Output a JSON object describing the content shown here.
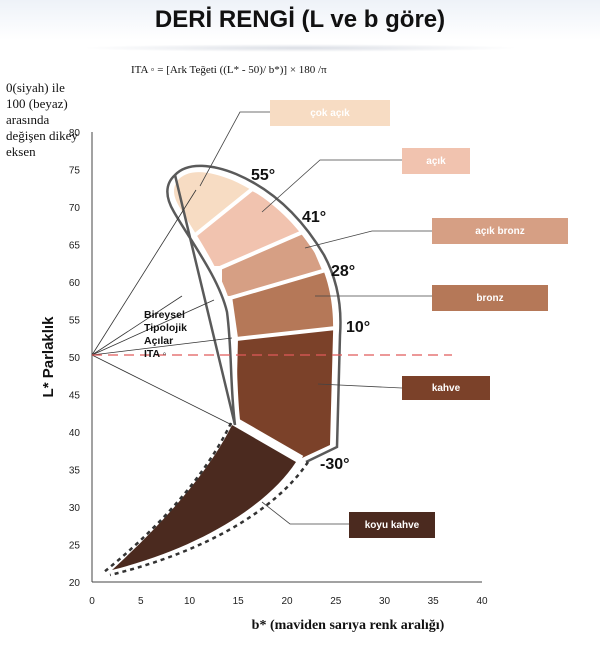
{
  "title": "DERİ RENGİ (L ve b göre)",
  "formula": "ITA ◦ = [Ark Teğeti ((L* - 50)/ b*)] × 180 /π",
  "axis_note": "0(siyah) ile 100 (beyaz) arasında değişen dikey eksen",
  "y_axis_label": "L* Parlaklık",
  "x_axis_label": "b* (maviden sarıya renk aralığı)",
  "x_ticks": [
    "0",
    "5",
    "10",
    "15",
    "20",
    "25",
    "30",
    "35",
    "40"
  ],
  "y_ticks": [
    "20",
    "25",
    "30",
    "35",
    "40",
    "45",
    "50",
    "55",
    "60",
    "65",
    "70",
    "75",
    "80"
  ],
  "angles": [
    "55°",
    "41°",
    "28°",
    "10°",
    "-30°"
  ],
  "ita_label_lines": [
    "Bireysel",
    "Tipolojik",
    "Açılar",
    "ITA ◦"
  ],
  "categories": [
    {
      "label": "çok açık",
      "color": "#f7dcc3"
    },
    {
      "label": "açık",
      "color": "#f1c3af"
    },
    {
      "label": "açık bronz",
      "color": "#d69f84"
    },
    {
      "label": "bronz",
      "color": "#b57858"
    },
    {
      "label": "kahve",
      "color": "#7b4129"
    },
    {
      "label": "koyu kahve",
      "color": "#4b2a1f"
    }
  ],
  "axis_ranges": {
    "x": [
      0,
      40
    ],
    "y": [
      20,
      80
    ]
  }
}
